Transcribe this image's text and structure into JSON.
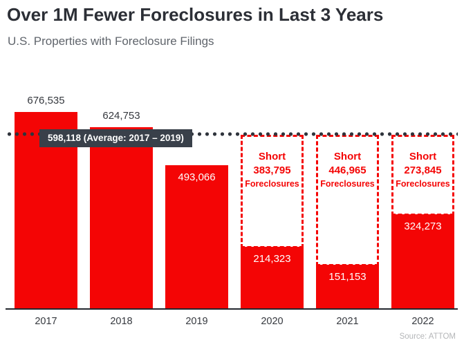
{
  "header": {
    "title": "Over 1M Fewer Foreclosures in Last 3 Years",
    "subtitle": "U.S. Properties with Foreclosure Filings"
  },
  "chart_data": {
    "type": "bar",
    "title": "Over 1M Fewer Foreclosures in Last 3 Years",
    "subtitle": "U.S. Properties with Foreclosure Filings",
    "categories": [
      "2017",
      "2018",
      "2019",
      "2020",
      "2021",
      "2022"
    ],
    "values": [
      676535,
      624753,
      493066,
      214323,
      151153,
      324273
    ],
    "value_labels": [
      "676,535",
      "624,753",
      "493,066",
      "214,323",
      "151,153",
      "324,273"
    ],
    "value_label_position": [
      "above",
      "above",
      "inside",
      "inside",
      "inside",
      "inside"
    ],
    "average_line": {
      "value": 598118,
      "label": "598,118 (Average: 2017 – 2019)",
      "style": "dotted"
    },
    "shortfalls": [
      {
        "category": "2020",
        "prefix": "Short",
        "amount": "383,795",
        "suffix": "Foreclosures",
        "value": 383795
      },
      {
        "category": "2021",
        "prefix": "Short",
        "amount": "446,965",
        "suffix": "Foreclosures",
        "value": 446965
      },
      {
        "category": "2022",
        "prefix": "Short",
        "amount": "273,845",
        "suffix": "Foreclosures",
        "value": 273845
      }
    ],
    "ylim": [
      0,
      760000
    ],
    "grid": false,
    "legend": false,
    "xlabel": "",
    "ylabel": "",
    "source": "Source: ATTOM",
    "colors": {
      "bar": "#f40505",
      "short_text": "#f40505",
      "short_border": "#f40505",
      "average_badge_bg": "#39404a",
      "average_badge_text": "#ffffff",
      "average_dots": "#2f343c",
      "title_text": "#2c2f36",
      "subtitle_text": "#5f646b",
      "axis_line": "#23272e",
      "source_text": "#b4b6b8"
    }
  }
}
